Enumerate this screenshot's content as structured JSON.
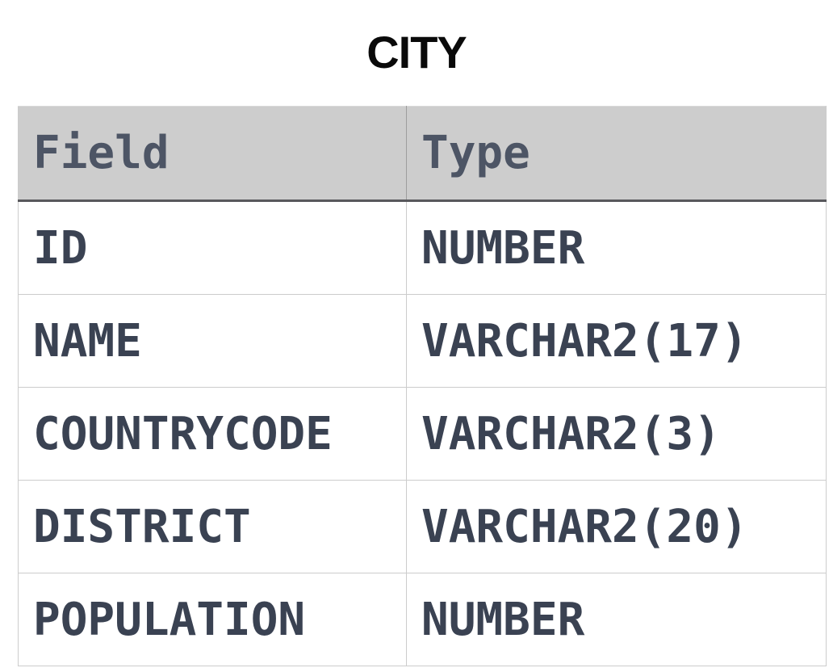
{
  "title": "CITY",
  "table": {
    "headers": {
      "field": "Field",
      "type": "Type"
    },
    "rows": [
      {
        "field": "ID",
        "type": "NUMBER"
      },
      {
        "field": "NAME",
        "type": "VARCHAR2(17)"
      },
      {
        "field": "COUNTRYCODE",
        "type": "VARCHAR2(3)"
      },
      {
        "field": "DISTRICT",
        "type": "VARCHAR2(20)"
      },
      {
        "field": "POPULATION",
        "type": "NUMBER"
      }
    ],
    "colors": {
      "header_background": "#cdcdcd",
      "header_text": "#4d5565",
      "header_bottom_border": "#58585c",
      "body_text": "#3a4252",
      "grid_border": "#cccccc",
      "page_background": "#ffffff",
      "title_text": "#0a0a0a"
    }
  },
  "chart_data": {
    "type": "table",
    "title": "CITY",
    "columns": [
      "Field",
      "Type"
    ],
    "rows": [
      [
        "ID",
        "NUMBER"
      ],
      [
        "NAME",
        "VARCHAR2(17)"
      ],
      [
        "COUNTRYCODE",
        "VARCHAR2(3)"
      ],
      [
        "DISTRICT",
        "VARCHAR2(20)"
      ],
      [
        "POPULATION",
        "NUMBER"
      ]
    ]
  }
}
